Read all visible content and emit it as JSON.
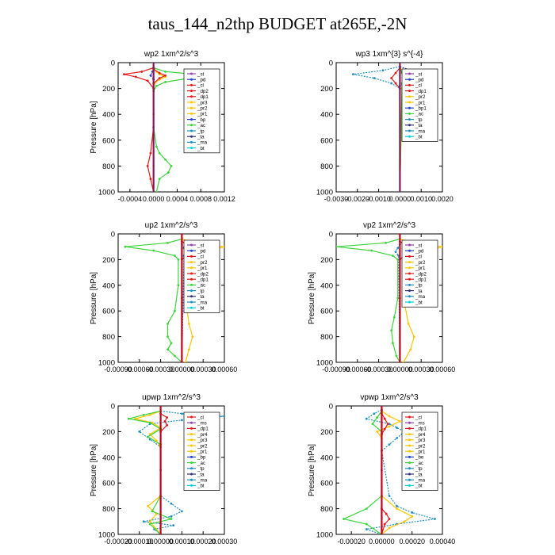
{
  "figure": {
    "title": "taus_144_n2thp  BUDGET at265E,-2N"
  },
  "colors": {
    "st": "#8e44ad",
    "bp": "#1f3fd0",
    "pd": "#1f3fd0",
    "cl": "#e31a1c",
    "dp": "#e31a1c",
    "pr": "#ffc400",
    "ac": "#3cd43c",
    "tp": "#1f8fbf",
    "ta": "#303080",
    "ma": "#1f8fbf",
    "bt": "#00d0e0",
    "ms": "#8e44ad"
  },
  "chart_data": [
    {
      "id": "wp2",
      "type": "line",
      "title": "wp2   1xm^2/s^3",
      "ylabel": "Pressure [hPa]",
      "ylim": [
        1000,
        0
      ],
      "yticks": [
        "0",
        "200",
        "400",
        "600",
        "800",
        "1000"
      ],
      "xlim": [
        -0.0006,
        0.0012
      ],
      "xticks": [
        -0.0004,
        0,
        0.0004,
        0.0008,
        0.0012
      ],
      "xtick_labels": [
        "-0.0004",
        "0.0000",
        "0.0004",
        "0.0008",
        "0.0012"
      ],
      "legend": [
        "_st",
        "_pd",
        "_cl",
        "_dp2",
        "_dp1",
        "_pr3",
        "_pr2",
        "_pr1",
        "_bp",
        "_ac",
        "_tp",
        "_ta",
        "_ma",
        "_bt"
      ],
      "series": [
        {
          "key": "pr",
          "x": [
            0,
            5e-05,
            0.0001,
            0.0002,
            0.0001,
            2e-05,
            0,
            0,
            0,
            0
          ],
          "y": [
            40,
            70,
            90,
            110,
            130,
            160,
            200,
            400,
            800,
            1000
          ]
        },
        {
          "key": "ac",
          "x": [
            0,
            0.0002,
            0.0007,
            0.0011,
            0.0006,
            0.0002,
            5e-05,
            0,
            0,
            5e-05,
            0.0001,
            0.0002,
            0.0003,
            0.00025,
            0.0001,
            5e-05
          ],
          "y": [
            40,
            70,
            90,
            100,
            120,
            150,
            180,
            220,
            500,
            650,
            700,
            750,
            800,
            850,
            900,
            1000
          ]
        },
        {
          "key": "dp",
          "x": [
            0,
            -0.0002,
            -0.0005,
            -0.0003,
            -0.0001,
            0,
            0,
            -5e-05,
            -0.0001,
            -5e-05,
            0
          ],
          "y": [
            40,
            70,
            90,
            110,
            140,
            200,
            500,
            700,
            800,
            900,
            1000
          ]
        },
        {
          "key": "cl",
          "x": [
            0,
            0.0001,
            0.0002,
            0.0001,
            0,
            0
          ],
          "y": [
            50,
            80,
            100,
            120,
            160,
            1000
          ]
        },
        {
          "key": "bp",
          "x": [
            0,
            -2e-05,
            -5e-05,
            0,
            0
          ],
          "y": [
            40,
            70,
            100,
            130,
            1000
          ]
        },
        {
          "key": "bt",
          "x": [
            0,
            0,
            0
          ],
          "y": [
            0,
            500,
            1000
          ]
        }
      ]
    },
    {
      "id": "wp3",
      "type": "line",
      "title": "wp3   1xm^{3} s^{-4}",
      "ylabel": "",
      "ylim": [
        1000,
        0
      ],
      "yticks": [
        "0",
        "200",
        "400",
        "600",
        "800",
        "1000"
      ],
      "xlim": [
        -0.003,
        0.002
      ],
      "xticks": [
        -0.003,
        -0.002,
        -0.001,
        0,
        0.001,
        0.002
      ],
      "xtick_labels": [
        "-0.0030",
        "-0.0020",
        "-0.0010",
        "0.0000",
        "0.0010",
        "0.0020"
      ],
      "legend": [
        "_st",
        "_pd",
        "_cl",
        "_dp1",
        "_pr2",
        "_pr1",
        "_bp1",
        "_ac",
        "_tp",
        "_ta",
        "_ma",
        "_bt"
      ],
      "series": [
        {
          "key": "bp",
          "x": [
            0,
            0.0005,
            0.0017,
            0.0008,
            0.0003,
            0,
            0
          ],
          "y": [
            30,
            60,
            90,
            120,
            150,
            180,
            1000
          ]
        },
        {
          "key": "tp",
          "x": [
            0,
            -0.0008,
            -0.0022,
            -0.0012,
            -0.0004,
            0,
            0
          ],
          "y": [
            30,
            60,
            90,
            120,
            160,
            200,
            1000
          ]
        },
        {
          "key": "pr",
          "x": [
            0,
            0.0003,
            0.0006,
            0.0003,
            0.0001,
            0
          ],
          "y": [
            40,
            80,
            120,
            160,
            200,
            1000
          ]
        },
        {
          "key": "dp",
          "x": [
            0,
            -0.0002,
            -0.0004,
            -0.0002,
            0,
            0
          ],
          "y": [
            40,
            80,
            120,
            160,
            200,
            1000
          ]
        },
        {
          "key": "ac",
          "x": [
            0,
            0.0001,
            0.0002,
            0.0001,
            0
          ],
          "y": [
            40,
            80,
            120,
            160,
            1000
          ]
        },
        {
          "key": "bt",
          "x": [
            0,
            0
          ],
          "y": [
            0,
            1000
          ]
        }
      ]
    },
    {
      "id": "up2",
      "type": "line",
      "title": "up2   1xm^2/s^3",
      "ylabel": "Pressure [hPa]",
      "ylim": [
        1000,
        0
      ],
      "yticks": [
        "0",
        "200",
        "400",
        "600",
        "800",
        "1000"
      ],
      "xlim": [
        -0.0009,
        0.0006
      ],
      "xticks": [
        -0.0009,
        -0.0006,
        -0.0003,
        0,
        0.0003,
        0.0006
      ],
      "xtick_labels": [
        "-0.00090",
        "-0.00060",
        "-0.00030",
        "0.00000",
        "0.00030",
        "0.00060"
      ],
      "legend": [
        "_st",
        "_pd",
        "_cl",
        "_pr2",
        "_pr1",
        "_dp2",
        "_dp1",
        "_ac",
        "_tp",
        "_ta",
        "_ma",
        "_bt"
      ],
      "series": [
        {
          "key": "ac",
          "x": [
            0,
            -0.0002,
            -0.0008,
            -0.0004,
            -0.0001,
            -5e-05,
            -5e-05,
            -0.0001,
            -0.0002,
            -0.0002,
            -0.00015,
            -0.0002,
            -0.0001,
            0
          ],
          "y": [
            40,
            70,
            100,
            130,
            170,
            200,
            400,
            600,
            700,
            800,
            850,
            900,
            950,
            1000
          ]
        },
        {
          "key": "pr",
          "x": [
            0,
            0.0002,
            0.0006,
            0.0004,
            0.0002,
            8e-05,
            5e-05,
            0.0001,
            0.00015,
            0.0001,
            5e-05
          ],
          "y": [
            40,
            70,
            100,
            130,
            160,
            200,
            500,
            700,
            800,
            900,
            1000
          ]
        },
        {
          "key": "dp",
          "x": [
            0,
            0.0001,
            0.0002,
            0.0001,
            0,
            0
          ],
          "y": [
            60,
            90,
            120,
            150,
            200,
            1000
          ]
        },
        {
          "key": "tp",
          "x": [
            0,
            3e-05,
            8e-05,
            3e-05,
            0
          ],
          "y": [
            80,
            110,
            140,
            170,
            1000
          ]
        },
        {
          "key": "cl",
          "x": [
            0,
            0,
            0
          ],
          "y": [
            0,
            500,
            1000
          ]
        }
      ]
    },
    {
      "id": "vp2",
      "type": "line",
      "title": "vp2   1xm^2/s^3",
      "ylabel": "Pressure [hPa]",
      "ylim": [
        1000,
        0
      ],
      "yticks": [
        "0",
        "200",
        "400",
        "600",
        "800",
        "1000"
      ],
      "xlim": [
        -0.0009,
        0.0006
      ],
      "xticks": [
        -0.0009,
        -0.0006,
        -0.0003,
        0,
        0.0003,
        0.0006
      ],
      "xtick_labels": [
        "-0.00090",
        "-0.00060",
        "-0.00030",
        "0.00000",
        "0.00030",
        "0.00060"
      ],
      "legend": [
        "_st",
        "_pd",
        "_cl",
        "_pr2",
        "_pr1",
        "_dp2",
        "_dp1",
        "_tp",
        "_ta",
        "_ma",
        "_bt"
      ],
      "series": [
        {
          "key": "ac",
          "x": [
            0,
            -0.0002,
            -0.0009,
            -0.0004,
            -0.0001,
            -3e-05,
            -3e-05,
            -8e-05,
            -0.00012,
            -0.0001,
            -5e-05,
            0
          ],
          "y": [
            40,
            70,
            100,
            130,
            170,
            200,
            500,
            650,
            750,
            850,
            950,
            1000
          ]
        },
        {
          "key": "pr",
          "x": [
            0,
            0.0002,
            0.0006,
            0.0004,
            0.0002,
            8e-05,
            5e-05,
            0.00012,
            0.0002,
            0.00015,
            5e-05
          ],
          "y": [
            40,
            70,
            100,
            130,
            160,
            200,
            500,
            700,
            800,
            900,
            1000
          ]
        },
        {
          "key": "dp",
          "x": [
            0,
            0.0001,
            0.0002,
            0.0001,
            0,
            0
          ],
          "y": [
            60,
            90,
            120,
            150,
            200,
            1000
          ]
        },
        {
          "key": "tp",
          "x": [
            0,
            -3e-05,
            -6e-05,
            -2e-05,
            0
          ],
          "y": [
            80,
            110,
            140,
            170,
            1000
          ]
        },
        {
          "key": "cl",
          "x": [
            0,
            0,
            0
          ],
          "y": [
            0,
            500,
            1000
          ]
        }
      ]
    },
    {
      "id": "upwp",
      "type": "line",
      "title": "upwp   1xm^2/s^3",
      "ylabel": "Pressure [hPa]",
      "ylim": [
        1000,
        0
      ],
      "yticks": [
        "0",
        "200",
        "400",
        "600",
        "800",
        "1000"
      ],
      "xlim": [
        -0.0002,
        0.0003
      ],
      "xticks": [
        -0.0002,
        -0.0001,
        0,
        0.0001,
        0.0002,
        0.0003
      ],
      "xtick_labels": [
        "-0.00020",
        "-0.00010",
        "0.00000",
        "0.00010",
        "0.00020",
        "0.00030"
      ],
      "legend": [
        "_cl",
        "_ms",
        "_dp1",
        "_pr4",
        "_pr3",
        "_pr2",
        "_pr1",
        "_bp",
        "_ac",
        "_tp",
        "_ta",
        "_ma",
        "_bt"
      ],
      "series": [
        {
          "key": "tp",
          "x": [
            0,
            0.0001,
            0.0003,
            0.0001,
            -5e-05,
            -0.0001,
            -5e-05,
            0,
            0,
            5e-05,
            0.0001,
            5e-05,
            -8e-05,
            6e-05,
            -3e-05,
            0
          ],
          "y": [
            40,
            60,
            80,
            110,
            140,
            200,
            260,
            320,
            700,
            760,
            820,
            860,
            900,
            930,
            960,
            1000
          ]
        },
        {
          "key": "pr",
          "x": [
            0,
            -5e-05,
            -0.00012,
            -4e-05,
            0,
            -5e-05,
            -2e-05,
            0,
            0,
            -6e-05,
            -2e-05,
            -5e-05,
            0
          ],
          "y": [
            40,
            70,
            100,
            130,
            170,
            220,
            270,
            320,
            700,
            780,
            840,
            900,
            1000
          ]
        },
        {
          "key": "ac",
          "x": [
            0,
            -8e-05,
            -0.00015,
            -5e-05,
            0,
            -6e-05,
            0,
            0,
            -4e-05,
            5e-05,
            -5e-05,
            0
          ],
          "y": [
            40,
            70,
            100,
            130,
            180,
            240,
            300,
            700,
            820,
            880,
            920,
            1000
          ]
        },
        {
          "key": "dp",
          "x": [
            0,
            3e-05,
            2e-05,
            3e-05,
            0,
            0
          ],
          "y": [
            60,
            90,
            120,
            150,
            200,
            1000
          ]
        },
        {
          "key": "ms",
          "x": [
            0,
            0,
            0
          ],
          "y": [
            0,
            500,
            1000
          ]
        }
      ]
    },
    {
      "id": "vpwp",
      "type": "line",
      "title": "vpwp   1xm^2/s^3",
      "ylabel": "Pressure [hPa]",
      "ylim": [
        1000,
        0
      ],
      "yticks": [
        "0",
        "200",
        "400",
        "600",
        "800",
        "1000"
      ],
      "xlim": [
        -0.0003,
        0.0004
      ],
      "xticks": [
        -0.0002,
        0,
        0.0002,
        0.0004
      ],
      "xtick_labels": [
        "-0.00020",
        "0.00000",
        "0.00020",
        "0.00040"
      ],
      "legend": [
        "_cl",
        "_ms",
        "_dp1",
        "_pr4",
        "_pr3",
        "_pr2",
        "_pr1",
        "_be",
        "_ac",
        "_tp",
        "_ta",
        "_ma",
        "_bt"
      ],
      "series": [
        {
          "key": "tp",
          "x": [
            0,
            -5e-05,
            -0.0001,
            5e-05,
            0.0001,
            0.00015,
            0.0001,
            5e-05,
            0,
            5e-05,
            0.0001,
            0.0002,
            0.00035,
            0.0001,
            -0.0001,
            0
          ],
          "y": [
            30,
            60,
            100,
            140,
            170,
            200,
            250,
            300,
            350,
            700,
            780,
            830,
            880,
            920,
            960,
            1000
          ]
        },
        {
          "key": "pr",
          "x": [
            0,
            5e-05,
            0.00012,
            5e-05,
            -3e-05,
            0,
            0,
            0.0001,
            0.0002,
            0.00015,
            5e-05,
            0
          ],
          "y": [
            40,
            80,
            120,
            160,
            200,
            250,
            700,
            800,
            860,
            900,
            950,
            1000
          ]
        },
        {
          "key": "ac",
          "x": [
            0,
            -3e-05,
            -6e-05,
            0,
            0,
            -0.0001,
            -0.00025,
            -0.0001,
            0
          ],
          "y": [
            40,
            90,
            140,
            200,
            700,
            800,
            880,
            920,
            1000
          ]
        },
        {
          "key": "dp",
          "x": [
            0,
            2e-05,
            4e-05,
            2e-05,
            0,
            0,
            3e-05,
            5e-05,
            2e-05,
            0
          ],
          "y": [
            60,
            100,
            140,
            180,
            220,
            800,
            840,
            880,
            920,
            1000
          ]
        },
        {
          "key": "ms",
          "x": [
            0,
            0,
            0
          ],
          "y": [
            0,
            500,
            1000
          ]
        }
      ]
    }
  ]
}
